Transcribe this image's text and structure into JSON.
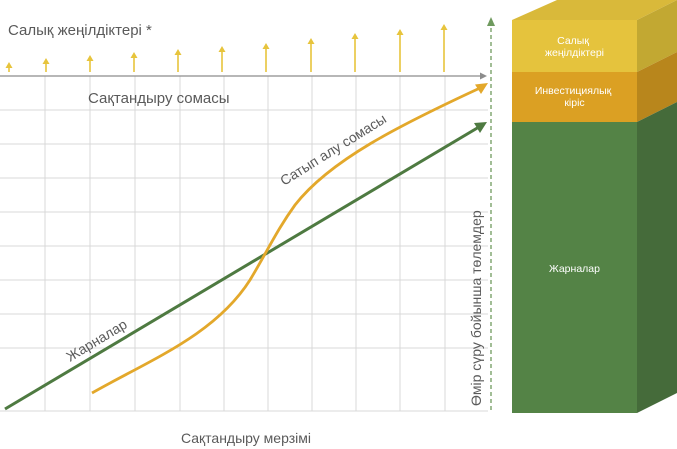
{
  "diagram": {
    "tax_benefits_label": "Салық жеңілдіктері *",
    "insured_sum_label": "Сақтандыру сомасы",
    "time_axis_label": "Сақтандыру мерзімі",
    "redemption_curve_label": "Сатып алу сомасы",
    "premiums_line_label": "Жарналар",
    "survival_payment_label": "Өмір сүру бойынша төлемдер",
    "stack": {
      "tax_benefits": "Салық\nжеңілдіктері",
      "investment_income": "Инвестициялық\nкіріс",
      "premiums": "Жарналар"
    }
  },
  "colors": {
    "grid": "#d9d9d9",
    "gold": "#e3a82b",
    "arrow_gold": "#e7c43c",
    "green": "#4e7a41",
    "dashed_green": "#6f9a5e",
    "axis": "#8c8c8c",
    "stack_top_gold_front": "#e5c33d",
    "stack_top_gold_side": "#c2a832",
    "stack_top_gold_cap": "#d9b93a",
    "stack_mid_front": "#dba023",
    "stack_mid_side": "#b8861c",
    "stack_green_front": "#548346",
    "stack_green_side": "#456b3a"
  }
}
